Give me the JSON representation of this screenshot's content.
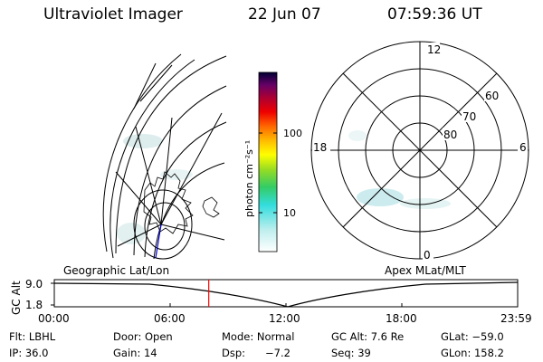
{
  "header": {
    "instrument": "Ultraviolet Imager",
    "date": "22 Jun 07",
    "time": "07:59:36 UT"
  },
  "colorbar": {
    "label": "photon cm⁻²s⁻¹",
    "ticks": [
      "100",
      "10"
    ]
  },
  "polar_plot": {
    "mlt_labels": [
      "12",
      "18",
      "6",
      "0"
    ],
    "lat_labels": [
      "60",
      "70",
      "80"
    ]
  },
  "panel_labels": {
    "left": "Geographic Lat/Lon",
    "right": "Apex MLat/MLT"
  },
  "altitude_plot": {
    "ylabel": "GC Alt",
    "y_ticks": [
      "9.0",
      "1.8"
    ],
    "x_ticks": [
      "00:00",
      "06:00",
      "12:00",
      "18:00",
      "23:59"
    ],
    "current_time_marker_hours": 8.0,
    "marker_color": "#ff0000"
  },
  "info": {
    "filter": "Flt: LBHL",
    "door": "Door: Open",
    "mode": "Mode: Normal",
    "gc_alt": "GC Alt: 7.6 Re",
    "glat": "GLat: −59.0",
    "ip": "IP: 36.0",
    "gain": "Gain: 14",
    "dsp_label": "Dsp:",
    "dsp_value": "−7.2",
    "seq": "Seq: 39",
    "glon": "GLon: 158.2"
  }
}
